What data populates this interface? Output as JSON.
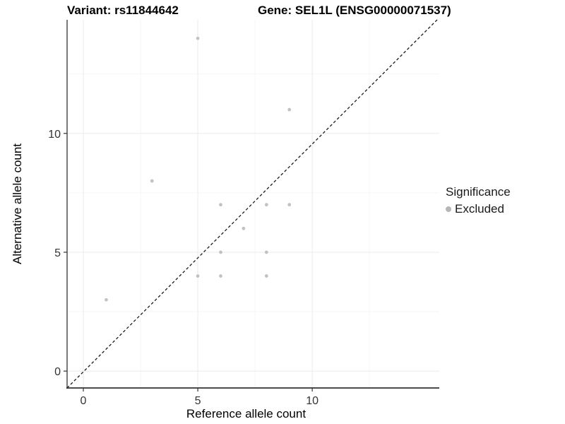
{
  "titles": {
    "variant": "Variant: rs11844642",
    "gene": "Gene: SEL1L (ENSG00000071537)"
  },
  "legend": {
    "title": "Significance",
    "items": [
      {
        "label": "Excluded",
        "color": "#b6b6b6"
      }
    ]
  },
  "chart_data": {
    "type": "scatter",
    "title": "Variant: rs11844642  /  Gene: SEL1L (ENSG00000071537)",
    "xlabel": "Reference allele count",
    "ylabel": "Alternative allele count",
    "xlim": [
      -0.71,
      15.55
    ],
    "ylim": [
      -0.71,
      14.78
    ],
    "x_ticks": [
      0,
      5,
      10
    ],
    "y_ticks": [
      0,
      5,
      10
    ],
    "x_minor_ticks": [
      2.5,
      7.5,
      12.5
    ],
    "y_minor_ticks": [
      2.5,
      7.5,
      12.5
    ],
    "grid": true,
    "legend_position": "right",
    "reference_line": {
      "type": "identity",
      "slope": 1,
      "intercept": 0,
      "style": "dashed",
      "color": "#1a1a1a"
    },
    "series": [
      {
        "name": "Excluded",
        "color": "#c2c2c2",
        "points": [
          [
            1,
            3
          ],
          [
            3,
            8
          ],
          [
            5,
            4
          ],
          [
            5,
            14
          ],
          [
            6,
            4
          ],
          [
            6,
            5
          ],
          [
            6,
            7
          ],
          [
            7,
            6
          ],
          [
            8,
            4
          ],
          [
            8,
            5
          ],
          [
            8,
            7
          ],
          [
            9,
            7
          ],
          [
            9,
            11
          ]
        ]
      }
    ],
    "colors": {
      "grid_major": "#ebebeb",
      "grid_minor": "#f6f6f6",
      "axis_line": "#333333",
      "tick_label": "#333333",
      "axis_title": "#000000"
    }
  }
}
